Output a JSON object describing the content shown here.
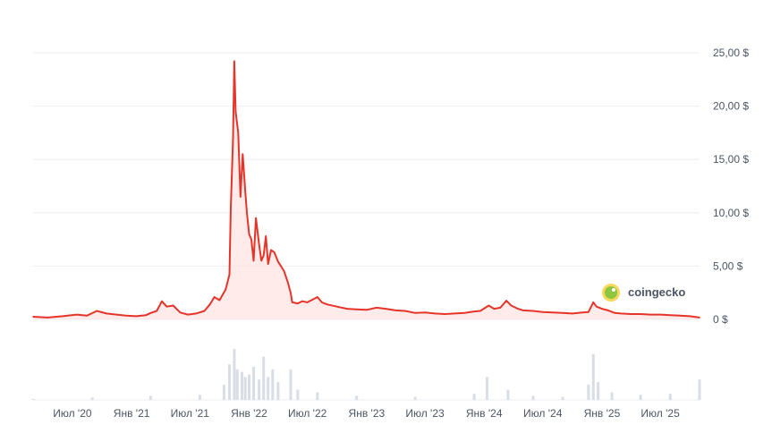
{
  "chart_data": {
    "type": "area",
    "title": "",
    "xlabel": "",
    "ylabel": "",
    "currency_suffix": " $",
    "ylim": [
      0,
      25
    ],
    "y_ticks": [
      {
        "value": 0,
        "label": "0 $"
      },
      {
        "value": 5,
        "label": "5,00 $"
      },
      {
        "value": 10,
        "label": "10,00 $"
      },
      {
        "value": 15,
        "label": "15,00 $"
      },
      {
        "value": 20,
        "label": "20,00 $"
      },
      {
        "value": 25,
        "label": "25,00 $"
      }
    ],
    "x_range": [
      "2020-03-01",
      "2025-10-31"
    ],
    "x_ticks": [
      {
        "date": "2020-07-01",
        "label": "Июл '20"
      },
      {
        "date": "2021-01-01",
        "label": "Янв '21"
      },
      {
        "date": "2021-07-01",
        "label": "Июл '21"
      },
      {
        "date": "2022-01-01",
        "label": "Янв '22"
      },
      {
        "date": "2022-07-01",
        "label": "Июл '22"
      },
      {
        "date": "2023-01-01",
        "label": "Янв '23"
      },
      {
        "date": "2023-07-01",
        "label": "Июл '23"
      },
      {
        "date": "2024-01-01",
        "label": "Янв '24"
      },
      {
        "date": "2024-07-01",
        "label": "Июл '24"
      },
      {
        "date": "2025-01-01",
        "label": "Янв '25"
      },
      {
        "date": "2025-07-01",
        "label": "Июл '25"
      }
    ],
    "grid": true,
    "legend": "none",
    "colors": {
      "line": "#e5352b",
      "fill": "#fde3e1",
      "volume": "#d9dde5",
      "grid": "#eceef2",
      "tick_text": "#4b5563",
      "brand_green": "#8dc63f",
      "brand_yellow": "#f8d85b"
    },
    "series": [
      {
        "x": [
          "2020-03-01",
          "2020-04-15",
          "2020-06-01",
          "2020-07-15",
          "2020-08-15",
          "2020-09-15",
          "2020-10-15",
          "2020-11-15",
          "2020-12-15",
          "2021-01-15",
          "2021-02-15",
          "2021-03-01",
          "2021-03-20",
          "2021-04-05",
          "2021-04-20",
          "2021-05-10",
          "2021-06-01",
          "2021-06-25",
          "2021-07-20",
          "2021-08-15",
          "2021-09-01",
          "2021-09-15",
          "2021-10-01",
          "2021-10-20",
          "2021-11-01",
          "2021-11-05",
          "2021-11-12",
          "2021-11-16",
          "2021-11-20",
          "2021-11-28",
          "2021-12-05",
          "2021-12-12",
          "2021-12-20",
          "2021-12-25",
          "2022-01-01",
          "2022-01-08",
          "2022-01-15",
          "2022-01-22",
          "2022-02-01",
          "2022-02-08",
          "2022-02-15",
          "2022-02-22",
          "2022-03-01",
          "2022-03-10",
          "2022-03-20",
          "2022-04-01",
          "2022-04-10",
          "2022-04-20",
          "2022-05-01",
          "2022-05-10",
          "2022-05-15",
          "2022-06-01",
          "2022-06-15",
          "2022-07-01",
          "2022-08-01",
          "2022-08-15",
          "2022-09-01",
          "2022-10-01",
          "2022-11-01",
          "2022-12-01",
          "2023-01-01",
          "2023-02-01",
          "2023-03-01",
          "2023-04-01",
          "2023-05-01",
          "2023-06-01",
          "2023-07-01",
          "2023-08-01",
          "2023-09-01",
          "2023-10-01",
          "2023-11-01",
          "2023-12-01",
          "2023-12-20",
          "2024-01-15",
          "2024-02-01",
          "2024-02-20",
          "2024-03-10",
          "2024-03-25",
          "2024-04-15",
          "2024-05-01",
          "2024-06-01",
          "2024-07-01",
          "2024-08-01",
          "2024-09-01",
          "2024-10-01",
          "2024-11-01",
          "2024-11-20",
          "2024-12-05",
          "2024-12-15",
          "2025-01-01",
          "2025-01-20",
          "2025-02-10",
          "2025-03-01",
          "2025-04-01",
          "2025-05-01",
          "2025-06-01",
          "2025-07-01",
          "2025-08-01",
          "2025-09-01",
          "2025-10-01",
          "2025-10-31"
        ],
        "values": [
          0.25,
          0.18,
          0.3,
          0.45,
          0.35,
          0.8,
          0.55,
          0.45,
          0.35,
          0.3,
          0.4,
          0.6,
          0.8,
          1.7,
          1.2,
          1.3,
          0.65,
          0.45,
          0.55,
          0.8,
          1.4,
          2.1,
          1.8,
          2.8,
          4.2,
          10.5,
          17.0,
          24.2,
          19.5,
          17.5,
          11.5,
          15.5,
          12.0,
          10.0,
          8.0,
          7.5,
          5.5,
          9.5,
          7.0,
          5.5,
          6.0,
          7.8,
          5.2,
          6.5,
          6.3,
          5.4,
          5.0,
          4.5,
          3.5,
          2.5,
          1.6,
          1.5,
          1.7,
          1.6,
          2.1,
          1.6,
          1.4,
          1.2,
          1.0,
          0.95,
          0.9,
          1.1,
          1.0,
          0.85,
          0.8,
          0.6,
          0.65,
          0.55,
          0.5,
          0.55,
          0.6,
          0.75,
          0.8,
          1.3,
          1.0,
          1.1,
          1.75,
          1.3,
          1.0,
          0.85,
          0.8,
          0.7,
          0.65,
          0.6,
          0.55,
          0.65,
          0.7,
          1.6,
          1.2,
          1.0,
          0.85,
          0.6,
          0.55,
          0.5,
          0.5,
          0.45,
          0.45,
          0.4,
          0.35,
          0.3,
          0.18
        ]
      }
    ],
    "volume": {
      "x": [
        "2020-03-01",
        "2020-09-01",
        "2021-03-01",
        "2021-08-01",
        "2021-10-15",
        "2021-11-01",
        "2021-11-16",
        "2021-11-25",
        "2021-12-10",
        "2021-12-20",
        "2022-01-01",
        "2022-01-15",
        "2022-02-01",
        "2022-02-15",
        "2022-03-01",
        "2022-03-15",
        "2022-04-01",
        "2022-05-10",
        "2022-06-01",
        "2022-08-01",
        "2022-12-01",
        "2023-06-01",
        "2023-12-01",
        "2024-01-10",
        "2024-03-15",
        "2024-06-01",
        "2024-09-01",
        "2024-11-20",
        "2024-12-05",
        "2024-12-20",
        "2025-02-01",
        "2025-05-01",
        "2025-08-01",
        "2025-10-31"
      ],
      "values": [
        0.02,
        0.05,
        0.08,
        0.1,
        0.3,
        0.7,
        1.0,
        0.6,
        0.55,
        0.45,
        0.5,
        0.65,
        0.4,
        0.85,
        0.45,
        0.6,
        0.35,
        0.6,
        0.2,
        0.15,
        0.08,
        0.06,
        0.12,
        0.45,
        0.2,
        0.08,
        0.06,
        0.3,
        0.9,
        0.35,
        0.15,
        0.1,
        0.12,
        0.4
      ]
    }
  },
  "brand": {
    "name": "coingecko",
    "icon": "coingecko-gecko-icon"
  }
}
